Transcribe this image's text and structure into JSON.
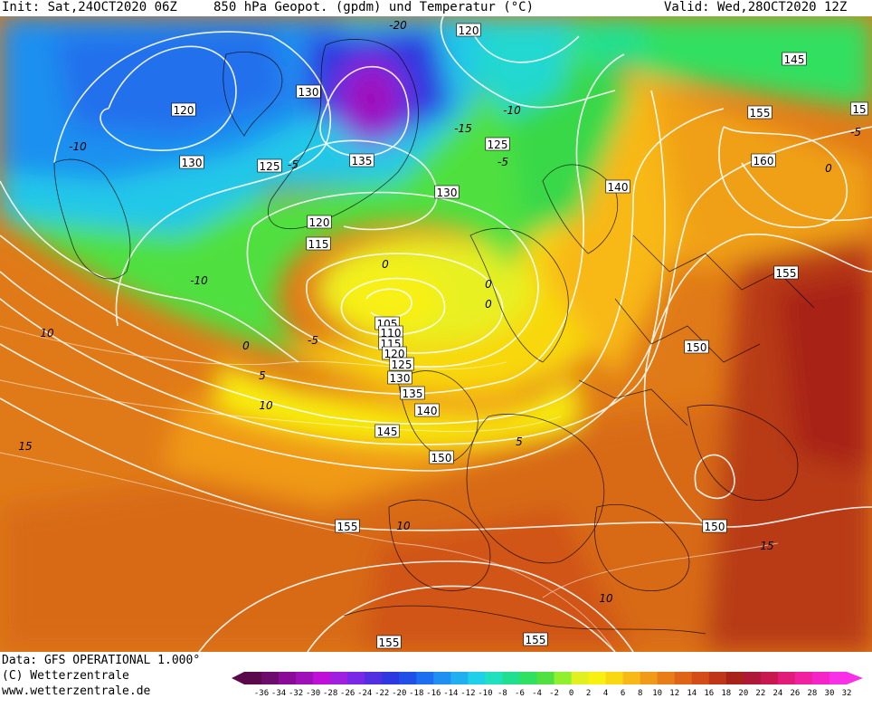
{
  "header": {
    "init": "Init: Sat,24OCT2020 06Z",
    "title": "850 hPa Geopot. (gpdm) und Temperatur (°C)",
    "valid": "Valid: Wed,28OCT2020 12Z"
  },
  "footer": {
    "data_line": "Data: GFS OPERATIONAL 1.000°",
    "copyright": "(C) Wetterzentrale",
    "url": "www.wetterzentrale.de"
  },
  "colorbar": {
    "ticks": [
      "-36",
      "-34",
      "-32",
      "-30",
      "-28",
      "-26",
      "-24",
      "-22",
      "-20",
      "-18",
      "-16",
      "-14",
      "-12",
      "-10",
      "-8",
      "-6",
      "-4",
      "-2",
      "0",
      "2",
      "4",
      "6",
      "8",
      "10",
      "12",
      "14",
      "16",
      "18",
      "20",
      "22",
      "24",
      "26",
      "28",
      "30",
      "32"
    ],
    "colors": [
      "#5a0a4a",
      "#6e0c6e",
      "#8a0c96",
      "#a010b8",
      "#c010d8",
      "#a020e0",
      "#7a28e8",
      "#5030e0",
      "#2e38e0",
      "#2050e8",
      "#1e6ef0",
      "#2090f0",
      "#20b0f0",
      "#20d0e8",
      "#20e0c0",
      "#20e090",
      "#30e060",
      "#50e040",
      "#90f030",
      "#e0f020",
      "#f8f010",
      "#f8d810",
      "#f8b818",
      "#f09a18",
      "#e87e18",
      "#e06418",
      "#d44c18",
      "#c03618",
      "#a82418",
      "#b01838",
      "#c81850",
      "#e01c78",
      "#f020a0",
      "#f424c8",
      "#f830e8"
    ]
  },
  "map": {
    "geopotential_labels": [
      {
        "text": "120"
      },
      {
        "text": "120"
      },
      {
        "text": "130"
      },
      {
        "text": "130"
      },
      {
        "text": "125"
      },
      {
        "text": "135"
      },
      {
        "text": "125"
      },
      {
        "text": "130"
      },
      {
        "text": "120"
      },
      {
        "text": "115"
      },
      {
        "text": "140"
      },
      {
        "text": "145"
      },
      {
        "text": "155"
      },
      {
        "text": "160"
      },
      {
        "text": "15"
      },
      {
        "text": "155"
      },
      {
        "text": "150"
      },
      {
        "text": "105"
      },
      {
        "text": "110"
      },
      {
        "text": "115"
      },
      {
        "text": "120"
      },
      {
        "text": "125"
      },
      {
        "text": "130"
      },
      {
        "text": "135"
      },
      {
        "text": "140"
      },
      {
        "text": "145"
      },
      {
        "text": "150"
      },
      {
        "text": "155"
      },
      {
        "text": "150"
      },
      {
        "text": "155"
      },
      {
        "text": "155"
      }
    ],
    "temperature_labels": [
      {
        "text": "-20"
      },
      {
        "text": "-15"
      },
      {
        "text": "-10"
      },
      {
        "text": "-10"
      },
      {
        "text": "-10"
      },
      {
        "text": "-5"
      },
      {
        "text": "-5"
      },
      {
        "text": "-5"
      },
      {
        "text": "0"
      },
      {
        "text": "0"
      },
      {
        "text": "0"
      },
      {
        "text": "0"
      },
      {
        "text": "5"
      },
      {
        "text": "5"
      },
      {
        "text": "10"
      },
      {
        "text": "10"
      },
      {
        "text": "10"
      },
      {
        "text": "10"
      },
      {
        "text": "15"
      },
      {
        "text": "15"
      },
      {
        "text": "-5"
      },
      {
        "text": "0"
      }
    ]
  }
}
